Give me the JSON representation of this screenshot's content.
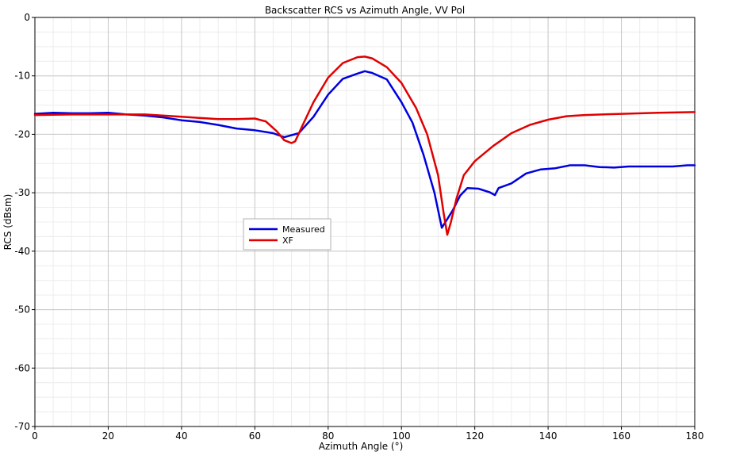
{
  "chart_data": {
    "type": "line",
    "title": "Backscatter RCS vs Azimuth Angle, VV Pol",
    "xlabel": "Azimuth Angle (°)",
    "ylabel": "RCS (dBsm)",
    "xlim": [
      0,
      180
    ],
    "ylim": [
      -70,
      0
    ],
    "xticks": [
      0,
      20,
      40,
      60,
      80,
      100,
      120,
      140,
      160,
      180
    ],
    "yticks": [
      0,
      -10,
      -20,
      -30,
      -40,
      -50,
      -60,
      -70
    ],
    "grid": true,
    "legend_position": "center-left",
    "series": [
      {
        "name": "Measured",
        "color": "#0000e0",
        "x": [
          0,
          5,
          10,
          15,
          20,
          25,
          30,
          35,
          40,
          45,
          50,
          55,
          60,
          65,
          68,
          72,
          76,
          80,
          84,
          88,
          90,
          92,
          96,
          100,
          103,
          106,
          109,
          111,
          112,
          114,
          116,
          118,
          121,
          124,
          125.5,
          126.5,
          130,
          134,
          138,
          142,
          146,
          150,
          154,
          158,
          162,
          166,
          170,
          174,
          178,
          180
        ],
        "y": [
          -16.5,
          -16.3,
          -16.4,
          -16.4,
          -16.3,
          -16.6,
          -16.8,
          -17.1,
          -17.6,
          -17.9,
          -18.4,
          -19.0,
          -19.3,
          -19.8,
          -20.5,
          -19.8,
          -17.0,
          -13.2,
          -10.5,
          -9.6,
          -9.2,
          -9.5,
          -10.6,
          -14.5,
          -18.0,
          -23.5,
          -30.0,
          -36.0,
          -35.0,
          -33.0,
          -30.5,
          -29.2,
          -29.3,
          -29.9,
          -30.4,
          -29.2,
          -28.4,
          -26.7,
          -26.0,
          -25.8,
          -25.3,
          -25.3,
          -25.6,
          -25.7,
          -25.5,
          -25.5,
          -25.5,
          -25.5,
          -25.3,
          -25.3
        ]
      },
      {
        "name": "XF",
        "color": "#e00000",
        "x": [
          0,
          10,
          20,
          30,
          40,
          50,
          55,
          60,
          63,
          66,
          68,
          70,
          71,
          73,
          76,
          80,
          84,
          88,
          90,
          92,
          96,
          100,
          104,
          107,
          110,
          111.5,
          112.5,
          113.5,
          115,
          117,
          120,
          125,
          130,
          135,
          140,
          145,
          150,
          160,
          170,
          180
        ],
        "y": [
          -16.7,
          -16.6,
          -16.6,
          -16.6,
          -17.0,
          -17.4,
          -17.4,
          -17.3,
          -17.8,
          -19.5,
          -21.0,
          -21.5,
          -21.2,
          -18.5,
          -14.5,
          -10.3,
          -7.8,
          -6.8,
          -6.7,
          -7.0,
          -8.5,
          -11.2,
          -15.5,
          -20.0,
          -27.0,
          -33.5,
          -37.2,
          -35.0,
          -31.0,
          -27.0,
          -24.6,
          -22.0,
          -19.8,
          -18.4,
          -17.5,
          -16.9,
          -16.7,
          -16.5,
          -16.3,
          -16.2
        ]
      }
    ]
  }
}
